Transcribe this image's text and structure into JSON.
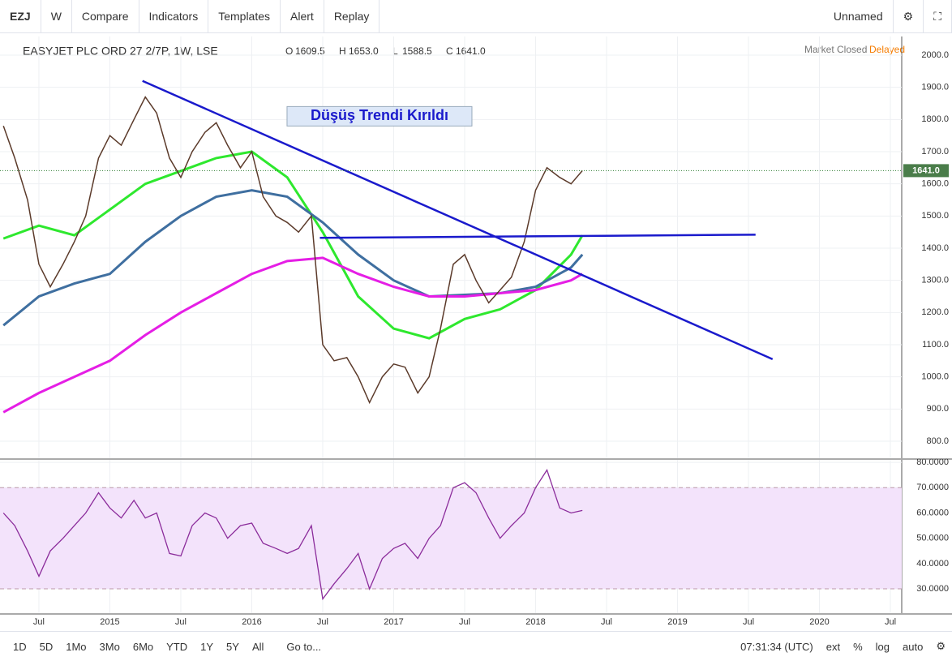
{
  "toolbar": {
    "symbol": "EZJ",
    "interval": "W",
    "items": [
      "Compare",
      "Indicators",
      "Templates",
      "Alert",
      "Replay"
    ],
    "layout": "Unnamed"
  },
  "header": {
    "title": "EASYJET PLC ORD 27 2/7P, 1W, LSE",
    "ohlc": [
      [
        "O",
        "1609.5"
      ],
      [
        "H",
        "1653.0"
      ],
      [
        "L",
        "1588.5"
      ],
      [
        "C",
        "1641.0"
      ]
    ],
    "status": "Market Closed",
    "delay": "Delayed"
  },
  "bottom_bar": {
    "ranges": [
      "1D",
      "5D",
      "1Mo",
      "3Mo",
      "6Mo",
      "YTD",
      "1Y",
      "5Y",
      "All"
    ],
    "goto": "Go to...",
    "time": "07:31:34 (UTC)",
    "options": [
      "ext",
      "%",
      "log",
      "auto"
    ]
  },
  "chart_data": [
    {
      "type": "line",
      "xlim": [
        2014.226,
        2020.58
      ],
      "ylim": [
        747,
        2058
      ],
      "grid": true,
      "yticks": [
        {
          "value": 800,
          "label": "800.0"
        },
        {
          "value": 900,
          "label": "900.0"
        },
        {
          "value": 1000,
          "label": "1000.0"
        },
        {
          "value": 1100,
          "label": "1100.0"
        },
        {
          "value": 1200,
          "label": "1200.0"
        },
        {
          "value": 1300,
          "label": "1300.0"
        },
        {
          "value": 1400,
          "label": "1400.0"
        },
        {
          "value": 1500,
          "label": "1500.0"
        },
        {
          "value": 1600,
          "label": "1600.0"
        },
        {
          "value": 1700,
          "label": "1700.0"
        },
        {
          "value": 1800,
          "label": "1800.0"
        },
        {
          "value": 1900,
          "label": "1900.0"
        },
        {
          "value": 2000,
          "label": "2000.0"
        }
      ],
      "x": [
        2014.25,
        2014.33,
        2014.42,
        2014.5,
        2014.58,
        2014.67,
        2014.75,
        2014.83,
        2014.92,
        2015.0,
        2015.08,
        2015.17,
        2015.25,
        2015.33,
        2015.42,
        2015.5,
        2015.58,
        2015.67,
        2015.75,
        2015.83,
        2015.92,
        2016.0,
        2016.08,
        2016.17,
        2016.25,
        2016.33,
        2016.42,
        2016.5,
        2016.58,
        2016.67,
        2016.75,
        2016.83,
        2016.92,
        2017.0,
        2017.08,
        2017.17,
        2017.25,
        2017.33,
        2017.42,
        2017.5,
        2017.58,
        2017.67,
        2017.75,
        2017.83,
        2017.92,
        2018.0,
        2018.08,
        2018.17,
        2018.25,
        2018.33
      ],
      "series": [
        {
          "color": "#5b3a2a",
          "values": [
            1780,
            1680,
            1550,
            1350,
            1280,
            1350,
            1420,
            1500,
            1680,
            1750,
            1720,
            1800,
            1870,
            1820,
            1680,
            1620,
            1700,
            1760,
            1790,
            1720,
            1650,
            1700,
            1560,
            1500,
            1480,
            1450,
            1500,
            1100,
            1050,
            1060,
            1000,
            920,
            1000,
            1040,
            1030,
            950,
            1000,
            1150,
            1350,
            1380,
            1300,
            1230,
            1270,
            1310,
            1420,
            1580,
            1650,
            1620,
            1600,
            1641
          ]
        }
      ],
      "averages": {
        "x": [
          2014.25,
          2014.5,
          2014.75,
          2015.0,
          2015.25,
          2015.5,
          2015.75,
          2016.0,
          2016.25,
          2016.5,
          2016.75,
          2017.0,
          2017.25,
          2017.5,
          2017.75,
          2018.0,
          2018.25,
          2018.33
        ],
        "series": [
          {
            "color": "#2ee82e",
            "values": [
              1430,
              1470,
              1440,
              1520,
              1600,
              1640,
              1680,
              1700,
              1620,
              1450,
              1250,
              1150,
              1120,
              1180,
              1210,
              1270,
              1380,
              1440
            ]
          },
          {
            "color": "#3f6fa0",
            "values": [
              1160,
              1250,
              1290,
              1320,
              1420,
              1500,
              1560,
              1580,
              1560,
              1480,
              1380,
              1300,
              1250,
              1255,
              1260,
              1280,
              1340,
              1380
            ]
          },
          {
            "color": "#e51ee5",
            "values": [
              890,
              950,
              1000,
              1050,
              1130,
              1200,
              1260,
              1320,
              1360,
              1370,
              1320,
              1280,
              1250,
              1250,
              1260,
              1270,
              1300,
              1320
            ]
          }
        ]
      },
      "trend_lines": {
        "color": "#1a1acc",
        "lines": [
          {
            "x": [
              2015.23,
              2019.67
            ],
            "y": [
              1920,
              1055
            ]
          },
          {
            "x": [
              2016.48,
              2019.55
            ],
            "y": [
              1432,
              1442
            ]
          }
        ]
      },
      "annotation": {
        "text": "Düşüş Trendi Kırıldı",
        "x": 2016.9,
        "y": 1810
      },
      "last_value": 1641,
      "last_value_label": "1641.0"
    },
    {
      "type": "rsi",
      "xlim": [
        2014.226,
        2020.58
      ],
      "ylim": [
        20.4,
        81
      ],
      "band": [
        30,
        70
      ],
      "color": "#8b2c9b",
      "grid": true,
      "yticks": [
        {
          "value": 30,
          "label": "30.0000"
        },
        {
          "value": 40,
          "label": "40.0000"
        },
        {
          "value": 50,
          "label": "50.0000"
        },
        {
          "value": 60,
          "label": "60.0000"
        },
        {
          "value": 70,
          "label": "70.0000"
        },
        {
          "value": 80,
          "label": "80.0000"
        }
      ],
      "xticks": [
        {
          "value": 2014.5,
          "label": "Jul"
        },
        {
          "value": 2015,
          "label": "2015"
        },
        {
          "value": 2015.5,
          "label": "Jul"
        },
        {
          "value": 2016,
          "label": "2016"
        },
        {
          "value": 2016.5,
          "label": "Jul"
        },
        {
          "value": 2017,
          "label": "2017"
        },
        {
          "value": 2017.5,
          "label": "Jul"
        },
        {
          "value": 2018,
          "label": "2018"
        },
        {
          "value": 2018.5,
          "label": "Jul"
        },
        {
          "value": 2019,
          "label": "2019"
        },
        {
          "value": 2019.5,
          "label": "Jul"
        },
        {
          "value": 2020,
          "label": "2020"
        },
        {
          "value": 2020.5,
          "label": "Jul"
        }
      ],
      "x": [
        2014.25,
        2014.33,
        2014.42,
        2014.5,
        2014.58,
        2014.67,
        2014.75,
        2014.83,
        2014.92,
        2015.0,
        2015.08,
        2015.17,
        2015.25,
        2015.33,
        2015.42,
        2015.5,
        2015.58,
        2015.67,
        2015.75,
        2015.83,
        2015.92,
        2016.0,
        2016.08,
        2016.17,
        2016.25,
        2016.33,
        2016.42,
        2016.5,
        2016.58,
        2016.67,
        2016.75,
        2016.83,
        2016.92,
        2017.0,
        2017.08,
        2017.17,
        2017.25,
        2017.33,
        2017.42,
        2017.5,
        2017.58,
        2017.67,
        2017.75,
        2017.83,
        2017.92,
        2018.0,
        2018.08,
        2018.17,
        2018.25,
        2018.33
      ],
      "values": [
        60,
        55,
        45,
        35,
        45,
        50,
        55,
        60,
        68,
        62,
        58,
        65,
        58,
        60,
        44,
        43,
        55,
        60,
        58,
        50,
        55,
        56,
        48,
        46,
        44,
        46,
        55,
        26,
        32,
        38,
        44,
        30,
        42,
        46,
        48,
        42,
        50,
        55,
        70,
        72,
        68,
        58,
        50,
        55,
        60,
        70,
        77,
        62,
        60,
        61
      ]
    }
  ]
}
